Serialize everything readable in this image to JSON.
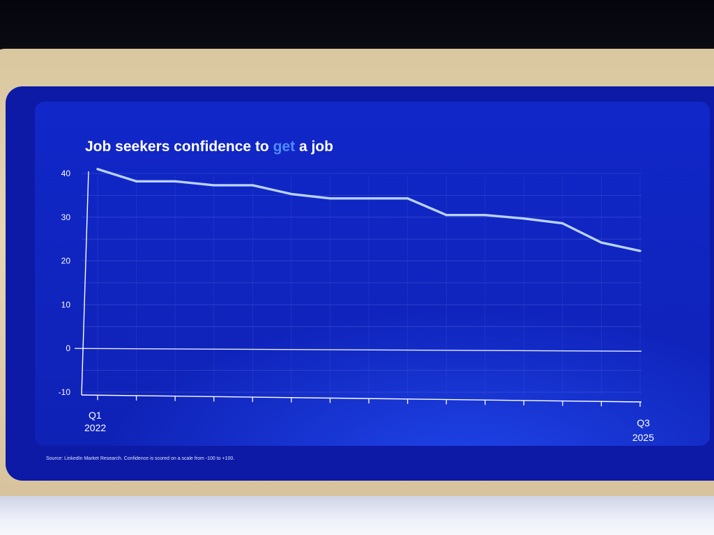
{
  "slide": {
    "title_before": "Job seekers confidence to ",
    "title_highlight": "get",
    "title_after": " a job",
    "source_note": "Source: LinkedIn Market Research. Confidence is scored on a scale from -100 to +100."
  },
  "colors": {
    "title": "#ffffff",
    "highlight": "#4f8bff",
    "line": "#b9d2ff",
    "grid": "#4d63d8",
    "zero_line": "#e8ecff",
    "axis": "#ffffff"
  },
  "chart_data": {
    "type": "line",
    "title": "Job seekers confidence to get a job",
    "xlabel": "",
    "ylabel": "",
    "ylim": [
      -10,
      40
    ],
    "yticks": [
      "40",
      "30",
      "20",
      "10",
      "0",
      "-10"
    ],
    "grid": true,
    "x_tick_count": 15,
    "x_end_labels": {
      "start": [
        "Q1",
        "2022"
      ],
      "end": [
        "Q3",
        "2025"
      ]
    },
    "series": [
      {
        "values": [
          41,
          38.2,
          38.2,
          37.3,
          37.3,
          35.3,
          34.3,
          34.3,
          34.3,
          30.5,
          30.5,
          29.7,
          28.6,
          24.2,
          22.3
        ]
      }
    ]
  }
}
